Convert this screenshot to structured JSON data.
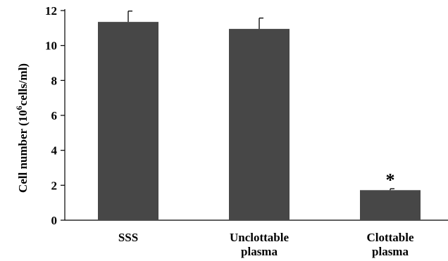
{
  "chart_data": {
    "type": "bar",
    "categories": [
      [
        "SSS"
      ],
      [
        "Unclottable",
        "plasma"
      ],
      [
        "Clottable",
        "plasma"
      ]
    ],
    "values": [
      11.35,
      10.95,
      1.72
    ],
    "errors": [
      0.62,
      0.62,
      0.08
    ],
    "ylabel": {
      "prefix": "Cell number (10",
      "superscript": "6",
      "suffix": "cells/ml)"
    },
    "yticks": [
      "0",
      "2",
      "4",
      "6",
      "8",
      "10",
      "12"
    ],
    "ylim": [
      0,
      12
    ],
    "annotations": [
      {
        "category_index": 2,
        "text": "*"
      }
    ],
    "bar_color": "#474747",
    "grid": false,
    "legend": "none"
  }
}
